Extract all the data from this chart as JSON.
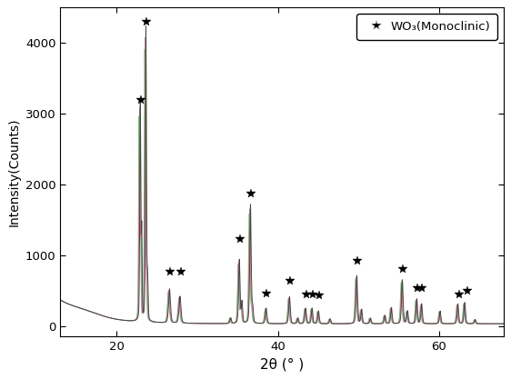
{
  "xlabel": "2θ (° )",
  "ylabel": "Intensity(Counts)",
  "xlim": [
    13,
    68
  ],
  "ylim": [
    -150,
    4500
  ],
  "xticks": [
    20,
    40,
    60
  ],
  "yticks": [
    0,
    1000,
    2000,
    3000,
    4000
  ],
  "legend_label": "WO₃(Monoclinic)",
  "star_positions": [
    [
      22.95,
      3150
    ],
    [
      23.65,
      4250
    ],
    [
      26.6,
      720
    ],
    [
      28.0,
      710
    ],
    [
      35.25,
      1180
    ],
    [
      36.65,
      1820
    ],
    [
      38.6,
      410
    ],
    [
      41.5,
      590
    ],
    [
      43.5,
      400
    ],
    [
      44.3,
      390
    ],
    [
      45.1,
      380
    ],
    [
      49.9,
      870
    ],
    [
      55.5,
      760
    ],
    [
      57.3,
      480
    ],
    [
      57.9,
      480
    ],
    [
      62.5,
      400
    ],
    [
      63.5,
      450
    ]
  ],
  "background_color": "#ffffff",
  "line_color_main": "#444444",
  "line_color_pink": "#c87090",
  "line_color_green": "#70b870"
}
